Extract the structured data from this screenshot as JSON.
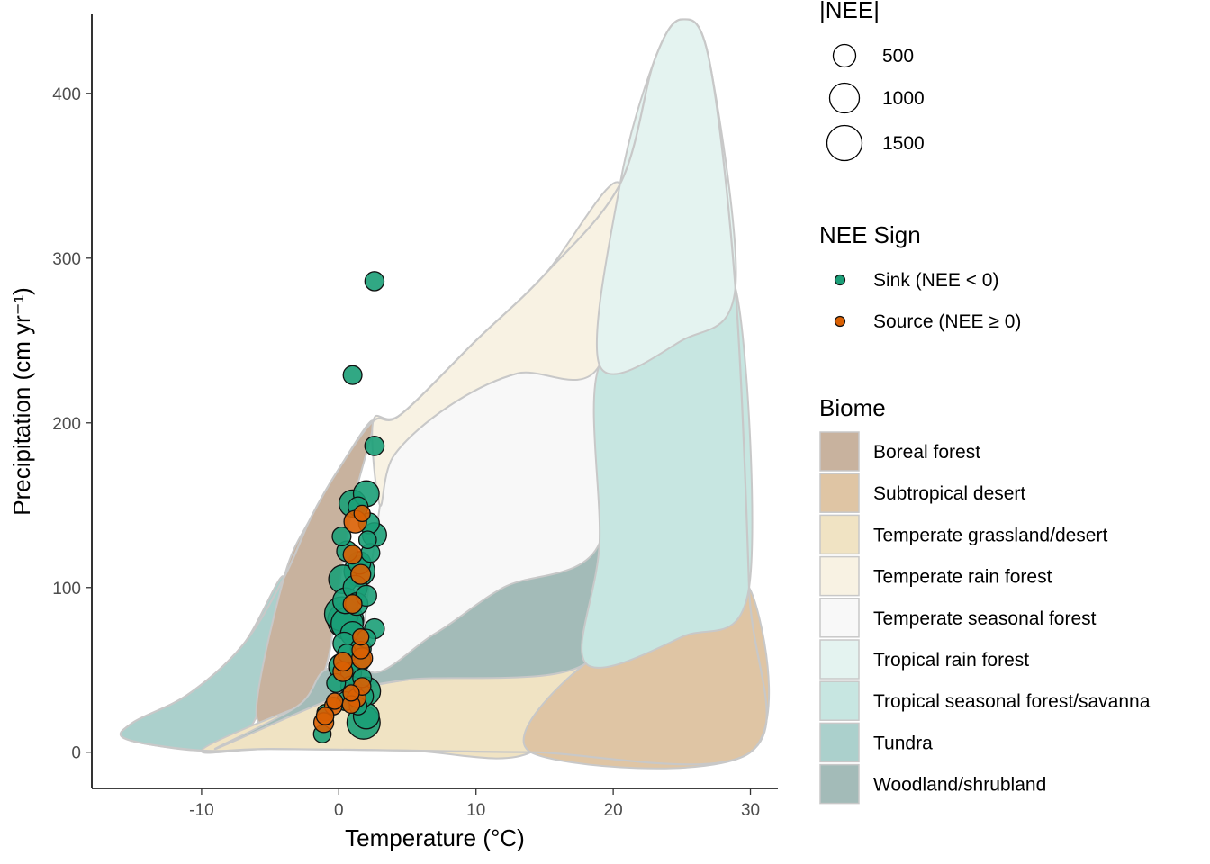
{
  "chart_data": {
    "type": "scatter",
    "xlabel": "Temperature (°C)",
    "ylabel": "Precipitation (cm yr⁻¹)",
    "xlim": [
      -18,
      32
    ],
    "ylim": [
      -22,
      448
    ],
    "x_ticks": [
      -10,
      0,
      10,
      20,
      30
    ],
    "x_tick_labels": [
      "-10",
      "0",
      "10",
      "20",
      "30"
    ],
    "y_ticks": [
      0,
      100,
      200,
      300,
      400
    ],
    "y_tick_labels": [
      "0",
      "100",
      "200",
      "300",
      "400"
    ],
    "grid": false,
    "size_legend": {
      "title": "|NEE|",
      "entries": [
        {
          "label": "500",
          "value": 500
        },
        {
          "label": "1000",
          "value": 1000
        },
        {
          "label": "1500",
          "value": 1500
        }
      ]
    },
    "sign_legend": {
      "title": "NEE Sign",
      "entries": [
        {
          "label": "Sink (NEE < 0)",
          "color": "#1b9e77"
        },
        {
          "label": "Source (NEE ≥ 0)",
          "color": "#d95f02"
        }
      ]
    },
    "biome_legend": {
      "title": "Biome",
      "entries": [
        {
          "label": "Boreal forest",
          "color": "#c8b29e"
        },
        {
          "label": "Subtropical desert",
          "color": "#dfc5a4"
        },
        {
          "label": "Temperate grassland/desert",
          "color": "#f0e3c3"
        },
        {
          "label": "Temperate rain forest",
          "color": "#f8f2e3"
        },
        {
          "label": "Temperate seasonal forest",
          "color": "#f8f8f8"
        },
        {
          "label": "Tropical rain forest",
          "color": "#e4f3f0"
        },
        {
          "label": "Tropical seasonal forest/savanna",
          "color": "#c7e6e1"
        },
        {
          "label": "Tundra",
          "color": "#abd0cc"
        },
        {
          "label": "Woodland/shrubland",
          "color": "#a3bbb8"
        }
      ]
    },
    "biome_regions": [
      {
        "biome": "Tundra",
        "color": "#abd0cc",
        "outline": [
          [
            -10,
            1
          ],
          [
            -15.5,
            8
          ],
          [
            -15,
            18
          ],
          [
            -11,
            35
          ],
          [
            -7,
            65
          ],
          [
            -4,
            106
          ],
          [
            -6,
            22
          ],
          [
            -8.5,
            8
          ],
          [
            -10,
            1
          ]
        ]
      },
      {
        "biome": "Boreal forest",
        "color": "#c8b29e",
        "outline": [
          [
            -6,
            22
          ],
          [
            -4,
            106
          ],
          [
            -2,
            143
          ],
          [
            0,
            172
          ],
          [
            2.5,
            201
          ],
          [
            1,
            150
          ],
          [
            0,
            100
          ],
          [
            -1,
            50
          ],
          [
            -3,
            28
          ],
          [
            -6,
            22
          ]
        ]
      },
      {
        "biome": "Temperate grassland/desert",
        "color": "#f0e3c3",
        "outline": [
          [
            -10,
            1
          ],
          [
            -5,
            2
          ],
          [
            5,
            1
          ],
          [
            14,
            0
          ],
          [
            18,
            54
          ],
          [
            5,
            44
          ],
          [
            0,
            34
          ],
          [
            -4,
            24
          ],
          [
            -10,
            1
          ]
        ]
      },
      {
        "biome": "Subtropical desert",
        "color": "#dfc5a4",
        "outline": [
          [
            14,
            0
          ],
          [
            30,
            0
          ],
          [
            29.9,
            100
          ],
          [
            25,
            70
          ],
          [
            18,
            54
          ],
          [
            14,
            0
          ]
        ]
      },
      {
        "biome": "Woodland/shrubland",
        "color": "#a3bbb8",
        "outline": [
          [
            -9,
            2
          ],
          [
            -3,
            28
          ],
          [
            -1,
            50
          ],
          [
            2,
            52
          ],
          [
            7,
            72
          ],
          [
            12,
            100
          ],
          [
            19,
            127
          ],
          [
            18,
            54
          ],
          [
            5,
            44
          ],
          [
            0,
            34
          ],
          [
            -9,
            2
          ]
        ]
      },
      {
        "biome": "Temperate seasonal forest",
        "color": "#f8f8f8",
        "outline": [
          [
            2,
            52
          ],
          [
            3,
            150
          ],
          [
            4,
            180
          ],
          [
            8,
            210
          ],
          [
            13,
            230
          ],
          [
            19,
            235
          ],
          [
            19,
            127
          ],
          [
            12,
            100
          ],
          [
            7,
            72
          ],
          [
            2,
            52
          ]
        ]
      },
      {
        "biome": "Temperate rain forest",
        "color": "#f8f2e3",
        "outline": [
          [
            2.5,
            201
          ],
          [
            4.5,
            205
          ],
          [
            10,
            250
          ],
          [
            15,
            290
          ],
          [
            20.5,
            345
          ],
          [
            19,
            235
          ],
          [
            13,
            230
          ],
          [
            8,
            210
          ],
          [
            4,
            180
          ],
          [
            3,
            150
          ],
          [
            2.5,
            201
          ]
        ]
      },
      {
        "biome": "Tropical seasonal forest/savanna",
        "color": "#c7e6e1",
        "outline": [
          [
            19,
            127
          ],
          [
            19,
            235
          ],
          [
            25,
            250
          ],
          [
            28.9,
            282
          ],
          [
            29.9,
            100
          ],
          [
            25,
            70
          ],
          [
            18,
            54
          ],
          [
            19,
            127
          ]
        ]
      },
      {
        "biome": "Tropical rain forest",
        "color": "#e4f3f0",
        "outline": [
          [
            19,
            235
          ],
          [
            20.5,
            345
          ],
          [
            23,
            420
          ],
          [
            25,
            445
          ],
          [
            27,
            420
          ],
          [
            28.9,
            282
          ],
          [
            25,
            250
          ],
          [
            19,
            235
          ]
        ]
      }
    ],
    "biome_boundary": [
      [
        -10,
        1
      ],
      [
        -15.5,
        8
      ],
      [
        -15,
        18
      ],
      [
        -11,
        35
      ],
      [
        -7,
        65
      ],
      [
        -4,
        106
      ],
      [
        -2,
        143
      ],
      [
        0,
        172
      ],
      [
        2.5,
        201
      ],
      [
        4.5,
        205
      ],
      [
        10,
        250
      ],
      [
        15,
        290
      ],
      [
        20.5,
        345
      ],
      [
        23,
        420
      ],
      [
        25,
        445
      ],
      [
        27,
        420
      ],
      [
        28.9,
        282
      ],
      [
        29.9,
        100
      ],
      [
        30,
        0
      ],
      [
        14,
        0
      ],
      [
        5,
        1
      ],
      [
        -5,
        2
      ],
      [
        -10,
        1
      ]
    ],
    "series": [
      {
        "name": "Sink (NEE < 0)",
        "color": "#1b9e77",
        "points": [
          {
            "x": 2.6,
            "y": 286,
            "nee": 320
          },
          {
            "x": 1.0,
            "y": 229,
            "nee": 300
          },
          {
            "x": 2.6,
            "y": 186,
            "nee": 330
          },
          {
            "x": 2.0,
            "y": 157,
            "nee": 700
          },
          {
            "x": 1.0,
            "y": 151,
            "nee": 800
          },
          {
            "x": 1.4,
            "y": 149,
            "nee": 350
          },
          {
            "x": 2.2,
            "y": 139,
            "nee": 400
          },
          {
            "x": 2.6,
            "y": 132,
            "nee": 600
          },
          {
            "x": 0.2,
            "y": 131,
            "nee": 300
          },
          {
            "x": 2.1,
            "y": 129,
            "nee": 250
          },
          {
            "x": 0.6,
            "y": 122,
            "nee": 400
          },
          {
            "x": 2.3,
            "y": 121,
            "nee": 300
          },
          {
            "x": 1.5,
            "y": 115,
            "nee": 500
          },
          {
            "x": 1.5,
            "y": 110,
            "nee": 1100
          },
          {
            "x": 0.3,
            "y": 105,
            "nee": 900
          },
          {
            "x": 1.2,
            "y": 100,
            "nee": 600
          },
          {
            "x": 2.0,
            "y": 95,
            "nee": 400
          },
          {
            "x": 0.5,
            "y": 92,
            "nee": 700
          },
          {
            "x": 1.3,
            "y": 90,
            "nee": 500
          },
          {
            "x": 0.2,
            "y": 84,
            "nee": 1400
          },
          {
            "x": 0.5,
            "y": 80,
            "nee": 1600
          },
          {
            "x": 0.6,
            "y": 78,
            "nee": 1200
          },
          {
            "x": 2.6,
            "y": 75,
            "nee": 350
          },
          {
            "x": 1.0,
            "y": 72,
            "nee": 600
          },
          {
            "x": 2.0,
            "y": 69,
            "nee": 300
          },
          {
            "x": 0.4,
            "y": 66,
            "nee": 500
          },
          {
            "x": 1.6,
            "y": 63,
            "nee": 400
          },
          {
            "x": 0.6,
            "y": 60,
            "nee": 300
          },
          {
            "x": 1.5,
            "y": 56,
            "nee": 500
          },
          {
            "x": 0.2,
            "y": 52,
            "nee": 700
          },
          {
            "x": 0.9,
            "y": 48,
            "nee": 400
          },
          {
            "x": 1.7,
            "y": 45,
            "nee": 300
          },
          {
            "x": -0.2,
            "y": 42,
            "nee": 300
          },
          {
            "x": 0.9,
            "y": 40,
            "nee": 400
          },
          {
            "x": 2.0,
            "y": 37,
            "nee": 900
          },
          {
            "x": 1.7,
            "y": 34,
            "nee": 500
          },
          {
            "x": 0.5,
            "y": 31,
            "nee": 300
          },
          {
            "x": 1.4,
            "y": 28,
            "nee": 250
          },
          {
            "x": 2.0,
            "y": 22,
            "nee": 700
          },
          {
            "x": 1.8,
            "y": 18,
            "nee": 1300
          },
          {
            "x": -1.0,
            "y": 24,
            "nee": 200
          },
          {
            "x": -1.2,
            "y": 11,
            "nee": 250
          }
        ]
      },
      {
        "name": "Source (NEE ≥ 0)",
        "color": "#d95f02",
        "points": [
          {
            "x": 1.7,
            "y": 145,
            "nee": 200
          },
          {
            "x": 1.2,
            "y": 140,
            "nee": 500
          },
          {
            "x": 1.0,
            "y": 120,
            "nee": 300
          },
          {
            "x": 1.6,
            "y": 108,
            "nee": 350
          },
          {
            "x": 1.0,
            "y": 90,
            "nee": 300
          },
          {
            "x": 1.6,
            "y": 70,
            "nee": 200
          },
          {
            "x": 1.6,
            "y": 62,
            "nee": 250
          },
          {
            "x": 1.7,
            "y": 57,
            "nee": 400
          },
          {
            "x": 0.3,
            "y": 55,
            "nee": 300
          },
          {
            "x": 0.3,
            "y": 49,
            "nee": 350
          },
          {
            "x": 1.7,
            "y": 40,
            "nee": 250
          },
          {
            "x": 0.9,
            "y": 36,
            "nee": 200
          },
          {
            "x": 1.3,
            "y": 33,
            "nee": 300
          },
          {
            "x": -0.3,
            "y": 31,
            "nee": 200
          },
          {
            "x": 0.9,
            "y": 29,
            "nee": 250
          },
          {
            "x": -0.4,
            "y": 28,
            "nee": 250
          },
          {
            "x": -1.0,
            "y": 22,
            "nee": 250
          },
          {
            "x": -1.1,
            "y": 18,
            "nee": 350
          }
        ]
      }
    ]
  }
}
